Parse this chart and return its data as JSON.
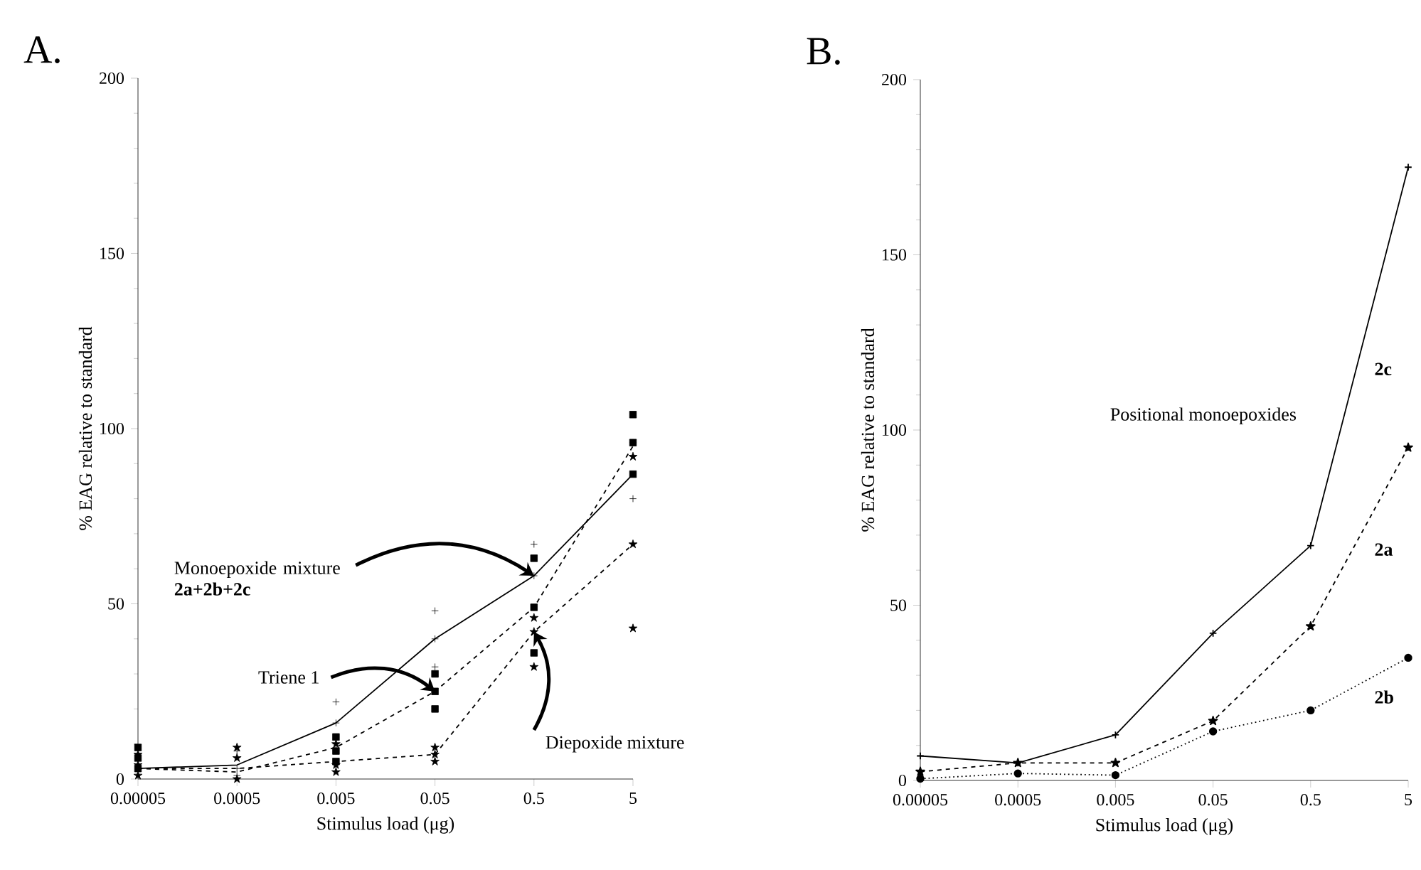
{
  "chart_data": [
    {
      "type": "line",
      "title": "A.",
      "xlabel": "Stimulus load (μg)",
      "ylabel": "% EAG relative to standard",
      "categories": [
        "0.00005",
        "0.0005",
        "0.005",
        "0.05",
        "0.5",
        "5"
      ],
      "ylim": [
        0,
        200
      ],
      "yticks": [
        0,
        50,
        100,
        150,
        200
      ],
      "series": [
        {
          "type": "line",
          "color": "#000000",
          "marker": "none",
          "line_style": "solid",
          "values": [
            3,
            4,
            16,
            40,
            58,
            87
          ]
        },
        {
          "type": "line",
          "color": "#000000",
          "marker": "none",
          "line_style": "dashed",
          "values": [
            3,
            2,
            9,
            25,
            49,
            95
          ]
        },
        {
          "type": "line",
          "color": "#000000",
          "marker": "none",
          "line_style": "dashed",
          "values": [
            3,
            3,
            5,
            7,
            42,
            67
          ]
        },
        {
          "type": "scatter",
          "color": "#000000",
          "marker": "cross",
          "x": [
            "0.00005",
            "0.00005",
            "0.00005",
            "0.0005",
            "0.0005",
            "0.0005",
            "0.005",
            "0.005",
            "0.005",
            "0.05",
            "0.05",
            "0.05",
            "0.5",
            "0.5",
            "5",
            "5"
          ],
          "values": [
            null,
            null,
            null,
            8,
            3,
            1,
            22,
            16,
            10,
            48,
            40,
            32,
            67,
            58,
            96,
            80
          ]
        },
        {
          "type": "scatter",
          "color": "#000000",
          "marker": "square",
          "x": [
            "0.00005",
            "0.00005",
            "0.00005",
            "0.0005",
            "0.005",
            "0.005",
            "0.005",
            "0.05",
            "0.05",
            "0.05",
            "0.5",
            "0.5",
            "0.5",
            "5",
            "5",
            "5"
          ],
          "values": [
            9,
            6,
            3,
            null,
            12,
            8,
            5,
            30,
            25,
            20,
            63,
            49,
            36,
            104,
            96,
            87
          ]
        },
        {
          "type": "scatter",
          "color": "#000000",
          "marker": "star",
          "x": [
            "0.00005",
            "0.00005",
            "0.00005",
            "0.0005",
            "0.0005",
            "0.0005",
            "0.005",
            "0.005",
            "0.005",
            "0.05",
            "0.05",
            "0.05",
            "0.5",
            "0.5",
            "0.5",
            "5",
            "5",
            "5"
          ],
          "values": [
            7,
            4,
            1,
            9,
            6,
            0,
            10,
            4,
            2,
            9,
            7,
            5,
            46,
            42,
            32,
            92,
            67,
            43
          ]
        }
      ],
      "annotations": [
        {
          "text": "Monoepoxide mixture **2a+2b+2c**",
          "x": "0.5",
          "y": 58
        },
        {
          "text": "Triene 1",
          "x": "0.05",
          "y": 25
        },
        {
          "text": "Diepoxide mixture",
          "x": "0.5",
          "y": 42
        }
      ]
    },
    {
      "type": "line",
      "title": "B.",
      "xlabel": "Stimulus load (μg)",
      "ylabel": "% EAG relative to standard",
      "categories": [
        "0.00005",
        "0.0005",
        "0.005",
        "0.05",
        "0.5",
        "5"
      ],
      "ylim": [
        0,
        200
      ],
      "yticks": [
        0,
        50,
        100,
        150,
        200
      ],
      "series": [
        {
          "name": "2c",
          "type": "line",
          "color": "#000000",
          "marker": "cross",
          "line_style": "solid",
          "values": [
            7,
            5,
            13,
            42,
            67,
            175
          ]
        },
        {
          "name": "2a",
          "type": "line",
          "color": "#000000",
          "marker": "star",
          "line_style": "dashed",
          "values": [
            2.5,
            5,
            5,
            17,
            44,
            95
          ]
        },
        {
          "name": "2b",
          "type": "line",
          "color": "#000000",
          "marker": "circle",
          "line_style": "dotted",
          "values": [
            0.5,
            2,
            1.5,
            14,
            20,
            35
          ]
        }
      ],
      "annotations": [
        "Positional monoepoxides"
      ]
    }
  ]
}
